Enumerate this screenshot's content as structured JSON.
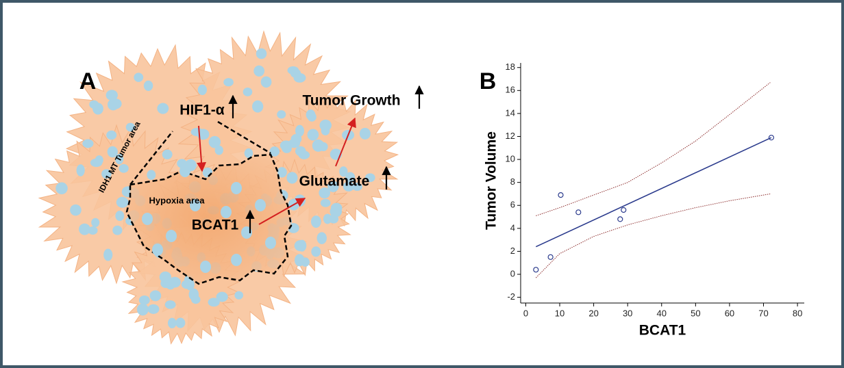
{
  "panel_a": {
    "label": "A",
    "region_label": "IDH1 MT Tumor area",
    "hypoxia_label": "Hypoxia area",
    "nodes": [
      "HIF1-α",
      "BCAT1",
      "Glutamate",
      "Tumor Growth"
    ]
  },
  "chart_data": {
    "type": "scatter",
    "panel_label": "B",
    "x_label": "BCAT1",
    "y_label": "Tumor Volume",
    "xlim": [
      -1.5,
      82
    ],
    "ylim": [
      -2.5,
      18.4
    ],
    "xticks": [
      0,
      10,
      20,
      30,
      40,
      50,
      60,
      70,
      80
    ],
    "yticks": [
      -2,
      0,
      2,
      4,
      6,
      8,
      10,
      12,
      14,
      16,
      18
    ],
    "series": [
      {
        "style": "markers",
        "color": "#2a3a8c",
        "x": [
          3,
          7.3,
          10.3,
          15.5,
          27.8,
          28.8,
          72.3
        ],
        "values": [
          0.4,
          1.5,
          6.9,
          5.4,
          4.8,
          5.6,
          11.9
        ]
      },
      {
        "style": "line",
        "color": "#2a3a8c",
        "x": [
          3,
          72.3
        ],
        "values": [
          2.4,
          11.9
        ]
      },
      {
        "style": "dotted",
        "color": "#8b2a2a",
        "x": [
          3,
          10,
          20,
          30,
          40,
          50,
          60,
          72
        ],
        "values": [
          5.1,
          5.8,
          6.9,
          8.0,
          9.7,
          11.6,
          13.9,
          16.7
        ]
      },
      {
        "style": "dotted",
        "color": "#8b2a2a",
        "x": [
          3,
          10,
          20,
          30,
          40,
          50,
          60,
          72
        ],
        "values": [
          -0.3,
          1.8,
          3.3,
          4.3,
          5.1,
          5.8,
          6.4,
          7.0
        ]
      }
    ]
  }
}
